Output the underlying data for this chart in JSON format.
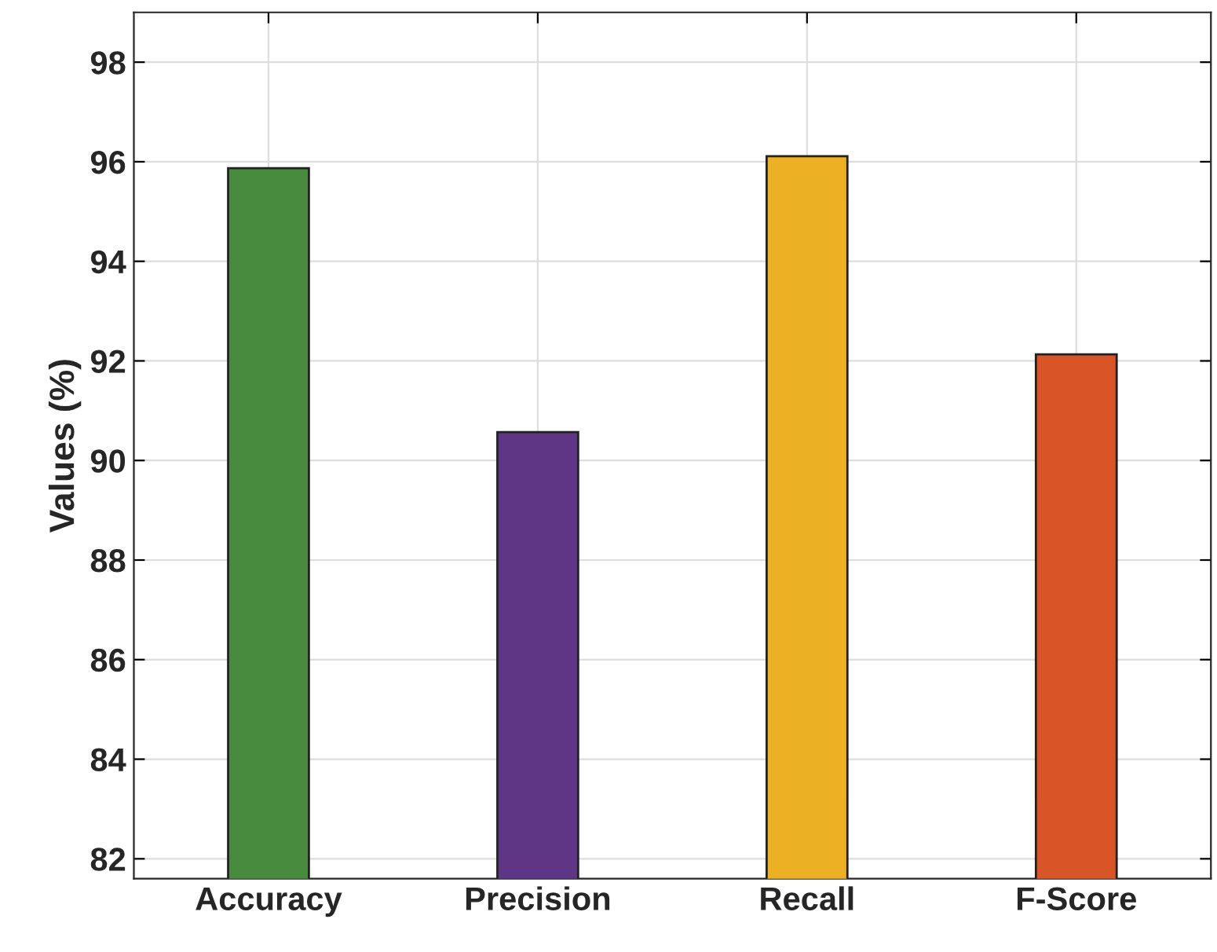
{
  "chart_data": {
    "type": "bar",
    "ylabel": "Values (%)",
    "categories": [
      "Accuracy",
      "Precision",
      "Recall",
      "F-Score"
    ],
    "values": [
      95.87,
      90.57,
      96.11,
      92.13
    ],
    "colors": [
      "#488a3e",
      "#5f3585",
      "#ebb023",
      "#d95427"
    ],
    "ylim": [
      81.6,
      99
    ],
    "yticks": [
      82,
      84,
      86,
      88,
      90,
      92,
      94,
      96,
      98
    ],
    "grid": true
  }
}
